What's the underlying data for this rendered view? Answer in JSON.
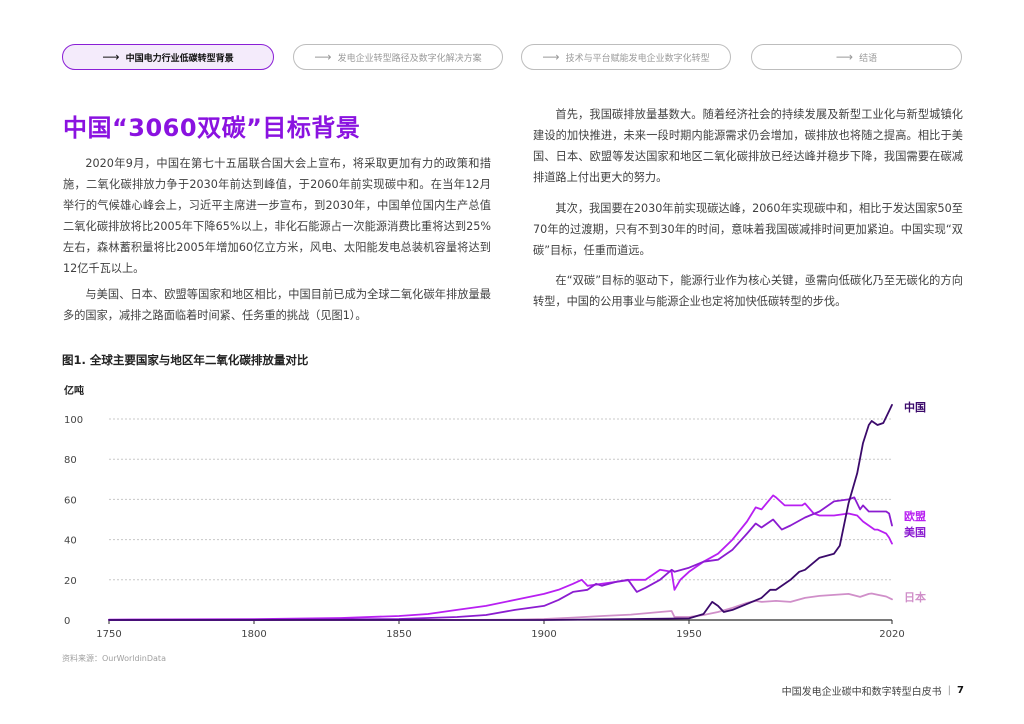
{
  "nav": {
    "tabs": [
      {
        "label": "中国电力行业低碳转型背景",
        "active": true
      },
      {
        "label": "发电企业转型路径及数字化解决方案",
        "active": false
      },
      {
        "label": "技术与平台赋能发电企业数字化转型",
        "active": false
      },
      {
        "label": "结语",
        "active": false
      }
    ],
    "arrow": "⟶"
  },
  "article": {
    "title": "中国“3060双碳”目标背景",
    "left_paragraphs": [
      "2020年9月，中国在第七十五届联合国大会上宣布，将采取更加有力的政策和措施，二氧化碳排放力争于2030年前达到峰值，于2060年前实现碳中和。在当年12月举行的气候雄心峰会上，习近平主席进一步宣布，到2030年，中国单位国内生产总值二氧化碳排放将比2005年下降65%以上，非化石能源占一次能源消费比重将达到25%左右，森林蓄积量将比2005年增加60亿立方米，风电、太阳能发电总装机容量将达到12亿千瓦以上。",
      "与美国、日本、欧盟等国家和地区相比，中国目前已成为全球二氧化碳年排放量最多的国家，减排之路面临着时间紧、任务重的挑战（见图1）。"
    ],
    "right_paragraphs": [
      "首先，我国碳排放量基数大。随着经济社会的持续发展及新型工业化与新型城镇化建设的加快推进，未来一段时期内能源需求仍会增加，碳排放也将随之提高。相比于美国、日本、欧盟等发达国家和地区二氧化碳排放已经达峰并稳步下降，我国需要在碳减排道路上付出更大的努力。",
      "其次，我国要在2030年前实现碳达峰，2060年实现碳中和，相比于发达国家50至70年的过渡期，只有不到30年的时间，意味着我国碳减排时间更加紧迫。中国实现“双碳”目标，任重而道远。",
      "在“双碳”目标的驱动下，能源行业作为核心关键，亟需向低碳化乃至无碳化的方向转型，中国的公用事业与能源企业也定将加快低碳转型的步伐。"
    ]
  },
  "figure": {
    "title": "图1. 全球主要国家与地区年二氧化碳排放量对比",
    "source": "资料来源：OurWorldinData"
  },
  "footer": {
    "text": "中国发电企业碳中和数字转型白皮书",
    "separator": "|",
    "page": "7"
  },
  "chart_data": {
    "type": "line",
    "title": "图1. 全球主要国家与地区年二氧化碳排放量对比",
    "ylabel": "亿吨",
    "xlabel": "",
    "xlim": [
      1750,
      2020
    ],
    "ylim": [
      0,
      100
    ],
    "x_ticks": [
      1750,
      1800,
      1850,
      1900,
      1950,
      2020
    ],
    "y_ticks": [
      0,
      20,
      40,
      60,
      80,
      100
    ],
    "grid": "horizontal dotted",
    "legend": "direct labels at line ends (right)",
    "series": [
      {
        "name": "中国",
        "color": "#3b0a6b",
        "points": [
          [
            1750,
            0
          ],
          [
            1900,
            0
          ],
          [
            1950,
            0.8
          ],
          [
            1955,
            3
          ],
          [
            1958,
            9
          ],
          [
            1960,
            7
          ],
          [
            1962,
            4
          ],
          [
            1965,
            5
          ],
          [
            1970,
            8
          ],
          [
            1975,
            11
          ],
          [
            1978,
            15
          ],
          [
            1980,
            15
          ],
          [
            1985,
            20
          ],
          [
            1988,
            24
          ],
          [
            1990,
            25
          ],
          [
            1995,
            31
          ],
          [
            2000,
            33
          ],
          [
            2002,
            37
          ],
          [
            2005,
            58
          ],
          [
            2008,
            73
          ],
          [
            2010,
            88
          ],
          [
            2012,
            97
          ],
          [
            2013,
            99
          ],
          [
            2015,
            97
          ],
          [
            2017,
            98
          ],
          [
            2019,
            104
          ],
          [
            2020,
            107
          ]
        ]
      },
      {
        "name": "欧盟",
        "color": "#b81ff2",
        "points": [
          [
            1750,
            0.2
          ],
          [
            1800,
            0.4
          ],
          [
            1830,
            1
          ],
          [
            1850,
            2
          ],
          [
            1860,
            3
          ],
          [
            1870,
            5
          ],
          [
            1880,
            7
          ],
          [
            1890,
            10
          ],
          [
            1900,
            13
          ],
          [
            1905,
            15
          ],
          [
            1910,
            18
          ],
          [
            1913,
            20
          ],
          [
            1915,
            17
          ],
          [
            1920,
            18
          ],
          [
            1925,
            19
          ],
          [
            1930,
            20
          ],
          [
            1935,
            20
          ],
          [
            1938,
            23
          ],
          [
            1940,
            25
          ],
          [
            1944,
            24
          ],
          [
            1945,
            15
          ],
          [
            1947,
            20
          ],
          [
            1950,
            24
          ],
          [
            1955,
            29
          ],
          [
            1960,
            33
          ],
          [
            1965,
            40
          ],
          [
            1970,
            49
          ],
          [
            1973,
            56
          ],
          [
            1975,
            55
          ],
          [
            1979,
            62
          ],
          [
            1980,
            61
          ],
          [
            1983,
            57
          ],
          [
            1985,
            57
          ],
          [
            1989,
            57
          ],
          [
            1990,
            58
          ],
          [
            1993,
            53
          ],
          [
            1995,
            52
          ],
          [
            2000,
            52
          ],
          [
            2005,
            53
          ],
          [
            2008,
            52
          ],
          [
            2010,
            49
          ],
          [
            2014,
            45
          ],
          [
            2015,
            45
          ],
          [
            2018,
            43
          ],
          [
            2019,
            41
          ],
          [
            2020,
            38
          ]
        ]
      },
      {
        "name": "美国",
        "color": "#8b1cd0",
        "points": [
          [
            1750,
            0
          ],
          [
            1800,
            0.1
          ],
          [
            1850,
            0.5
          ],
          [
            1870,
            1.5
          ],
          [
            1880,
            2.5
          ],
          [
            1890,
            5
          ],
          [
            1900,
            7
          ],
          [
            1905,
            10
          ],
          [
            1910,
            14
          ],
          [
            1915,
            15
          ],
          [
            1918,
            18
          ],
          [
            1920,
            17
          ],
          [
            1925,
            19
          ],
          [
            1929,
            20
          ],
          [
            1932,
            14
          ],
          [
            1935,
            16
          ],
          [
            1940,
            20
          ],
          [
            1944,
            25
          ],
          [
            1945,
            24
          ],
          [
            1950,
            26
          ],
          [
            1955,
            29
          ],
          [
            1960,
            30
          ],
          [
            1965,
            35
          ],
          [
            1970,
            43
          ],
          [
            1973,
            48
          ],
          [
            1975,
            46
          ],
          [
            1979,
            50
          ],
          [
            1982,
            45
          ],
          [
            1985,
            47
          ],
          [
            1990,
            51
          ],
          [
            1995,
            54
          ],
          [
            2000,
            59
          ],
          [
            2005,
            60
          ],
          [
            2007,
            61
          ],
          [
            2009,
            55
          ],
          [
            2010,
            57
          ],
          [
            2012,
            54
          ],
          [
            2015,
            54
          ],
          [
            2018,
            54
          ],
          [
            2019,
            53
          ],
          [
            2020,
            47
          ]
        ]
      },
      {
        "name": "日本",
        "color": "#d08fc9",
        "points": [
          [
            1750,
            0
          ],
          [
            1870,
            0
          ],
          [
            1890,
            0.2
          ],
          [
            1900,
            0.5
          ],
          [
            1910,
            1.2
          ],
          [
            1920,
            2
          ],
          [
            1930,
            2.7
          ],
          [
            1940,
            4
          ],
          [
            1944,
            4.5
          ],
          [
            1945,
            1.5
          ],
          [
            1950,
            1.5
          ],
          [
            1955,
            2.5
          ],
          [
            1960,
            4
          ],
          [
            1965,
            6
          ],
          [
            1970,
            8.5
          ],
          [
            1973,
            9.5
          ],
          [
            1975,
            9
          ],
          [
            1980,
            9.5
          ],
          [
            1985,
            9
          ],
          [
            1990,
            11
          ],
          [
            1995,
            12
          ],
          [
            2000,
            12.5
          ],
          [
            2005,
            13
          ],
          [
            2009,
            11.5
          ],
          [
            2012,
            13
          ],
          [
            2013,
            13.2
          ],
          [
            2015,
            12.6
          ],
          [
            2018,
            11.7
          ],
          [
            2020,
            10.3
          ]
        ]
      }
    ]
  }
}
